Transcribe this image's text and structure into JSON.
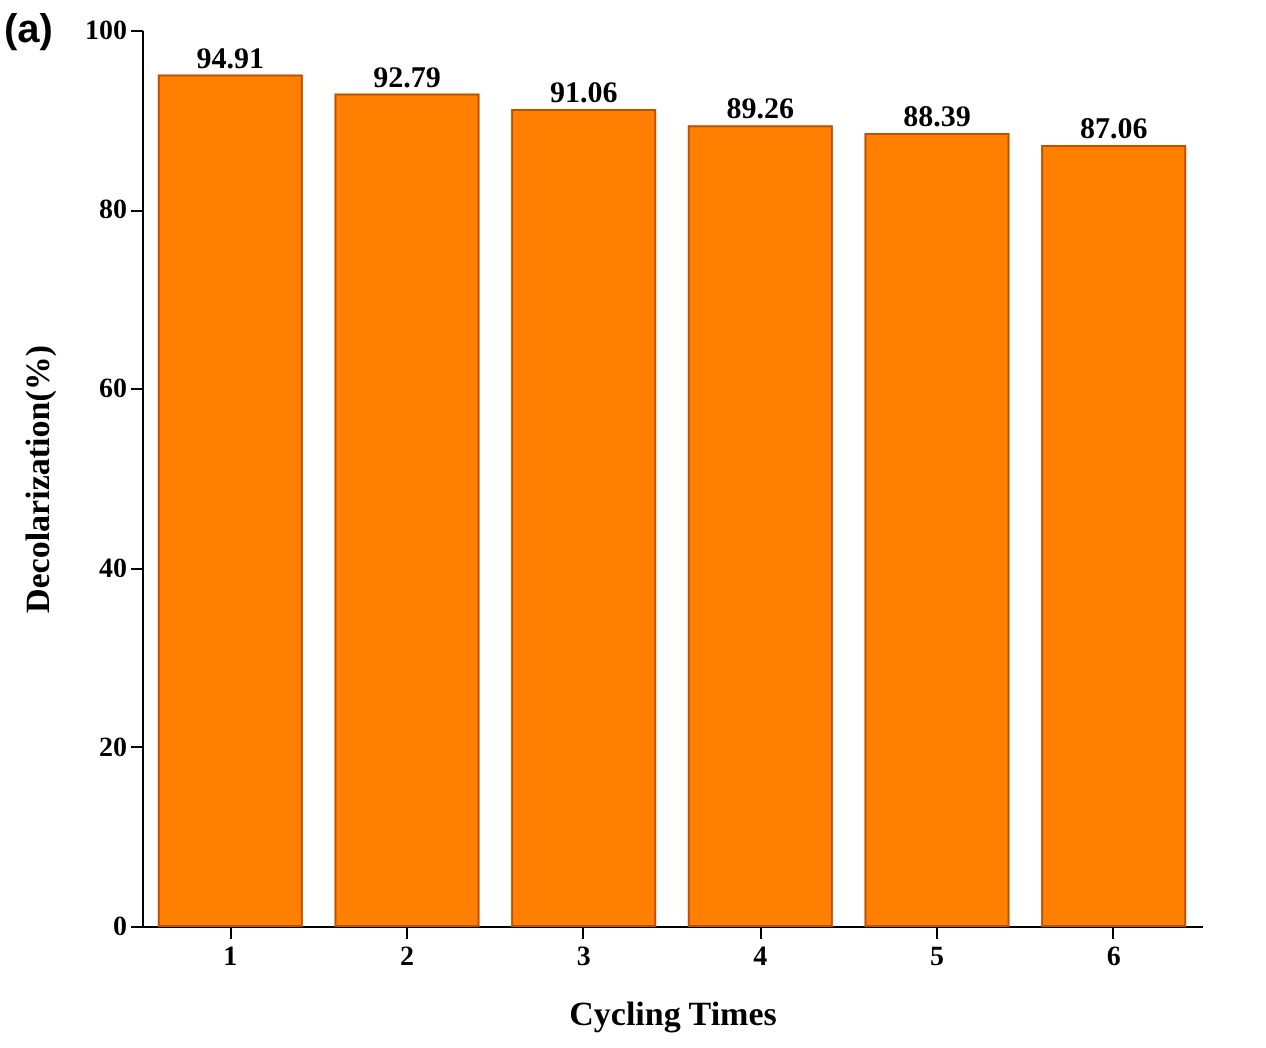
{
  "chart_data": {
    "type": "bar",
    "annotations": [
      "(a)"
    ],
    "xlabel": "Cycling Times",
    "ylabel": "Decolarization(%)",
    "categories": [
      "1",
      "2",
      "3",
      "4",
      "5",
      "6"
    ],
    "values": [
      94.91,
      92.79,
      91.06,
      89.26,
      88.39,
      87.06
    ],
    "color": "#ff8000",
    "ylim": [
      0,
      100
    ],
    "yticks": [
      0,
      20,
      40,
      60,
      80,
      100
    ],
    "data_labels": true,
    "grid": false
  }
}
